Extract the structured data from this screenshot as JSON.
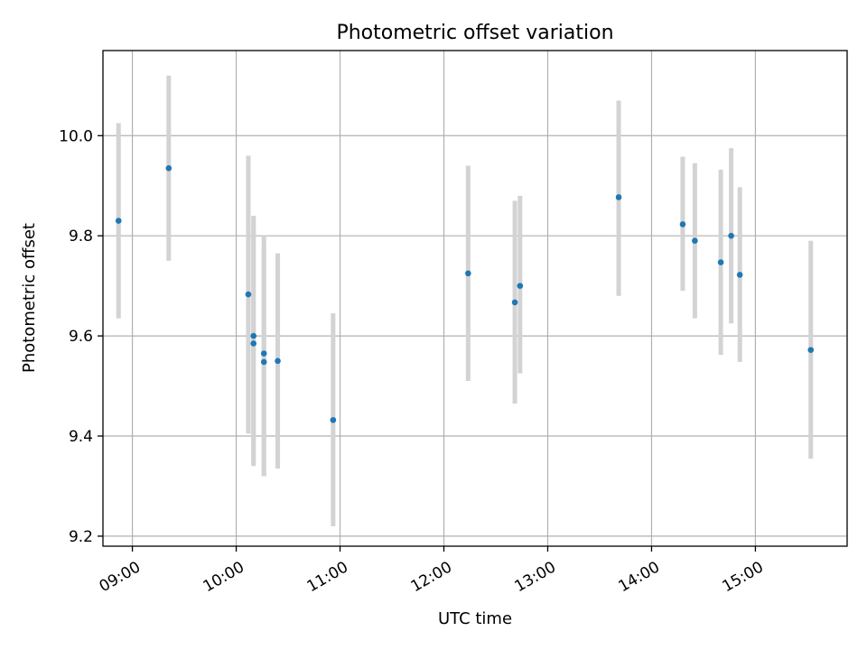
{
  "chart_data": {
    "type": "scatter",
    "title": "Photometric offset variation",
    "xlabel": "UTC time",
    "ylabel": "Photometric offset",
    "x_type": "time",
    "xlim": [
      "08:43",
      "15:53"
    ],
    "ylim": [
      9.18,
      10.17
    ],
    "x_ticks": [
      "09:00",
      "10:00",
      "11:00",
      "12:00",
      "13:00",
      "14:00",
      "15:00"
    ],
    "y_ticks": [
      9.2,
      9.4,
      9.6,
      9.8,
      10.0
    ],
    "y_tick_labels": [
      "9.2",
      "9.4",
      "9.6",
      "9.8",
      "10.0"
    ],
    "grid": true,
    "marker_color": "#1f77b4",
    "errorbar_color": "#d3d3d3",
    "points": [
      {
        "x": "08:52",
        "y": 9.83,
        "ymin": 9.635,
        "ymax": 10.025
      },
      {
        "x": "09:21",
        "y": 9.935,
        "ymin": 9.75,
        "ymax": 10.12
      },
      {
        "x": "10:07",
        "y": 9.683,
        "ymin": 9.405,
        "ymax": 9.96
      },
      {
        "x": "10:10",
        "y": 9.6,
        "ymin": 9.345,
        "ymax": 9.84
      },
      {
        "x": "10:10",
        "y": 9.585,
        "ymin": 9.34,
        "ymax": 9.83
      },
      {
        "x": "10:16",
        "y": 9.565,
        "ymin": 9.32,
        "ymax": 9.8
      },
      {
        "x": "10:16",
        "y": 9.548,
        "ymin": 9.32,
        "ymax": 9.775
      },
      {
        "x": "10:24",
        "y": 9.55,
        "ymin": 9.335,
        "ymax": 9.765
      },
      {
        "x": "10:56",
        "y": 9.432,
        "ymin": 9.22,
        "ymax": 9.645
      },
      {
        "x": "12:14",
        "y": 9.725,
        "ymin": 9.51,
        "ymax": 9.94
      },
      {
        "x": "12:41",
        "y": 9.667,
        "ymin": 9.465,
        "ymax": 9.87
      },
      {
        "x": "12:44",
        "y": 9.7,
        "ymin": 9.525,
        "ymax": 9.88
      },
      {
        "x": "13:41",
        "y": 9.877,
        "ymin": 9.68,
        "ymax": 10.07
      },
      {
        "x": "14:18",
        "y": 9.823,
        "ymin": 9.69,
        "ymax": 9.958
      },
      {
        "x": "14:25",
        "y": 9.79,
        "ymin": 9.635,
        "ymax": 9.945
      },
      {
        "x": "14:40",
        "y": 9.747,
        "ymin": 9.562,
        "ymax": 9.932
      },
      {
        "x": "14:46",
        "y": 9.8,
        "ymin": 9.625,
        "ymax": 9.975
      },
      {
        "x": "14:51",
        "y": 9.722,
        "ymin": 9.548,
        "ymax": 9.897
      },
      {
        "x": "15:32",
        "y": 9.572,
        "ymin": 9.355,
        "ymax": 9.79
      }
    ]
  }
}
